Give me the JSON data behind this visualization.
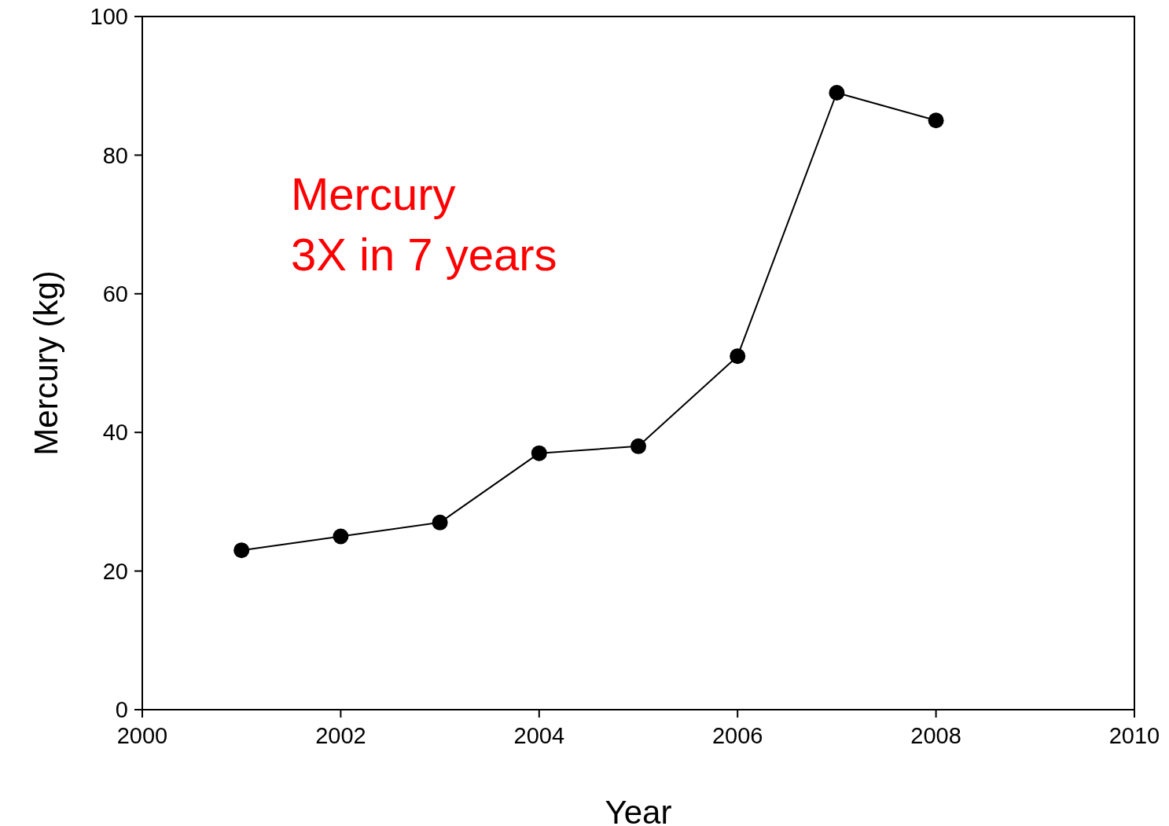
{
  "chart_data": {
    "type": "line",
    "xlabel": "Year",
    "ylabel": "Mercury (kg)",
    "annotations": [
      "Mercury",
      "3X in 7 years"
    ],
    "x": [
      2001,
      2002,
      2003,
      2004,
      2005,
      2006,
      2007,
      2008
    ],
    "series": [
      {
        "color": "#000000",
        "values": [
          23,
          25,
          27,
          37,
          38,
          51,
          89,
          85
        ]
      }
    ],
    "xlim": [
      2000,
      2010
    ],
    "xticks": [
      2000,
      2002,
      2004,
      2006,
      2008,
      2010
    ],
    "ylim": [
      0,
      100
    ],
    "yticks": [
      0,
      20,
      40,
      60,
      80,
      100
    ],
    "grid": false,
    "legend": false,
    "marker": "circle",
    "line_style": "solid"
  }
}
